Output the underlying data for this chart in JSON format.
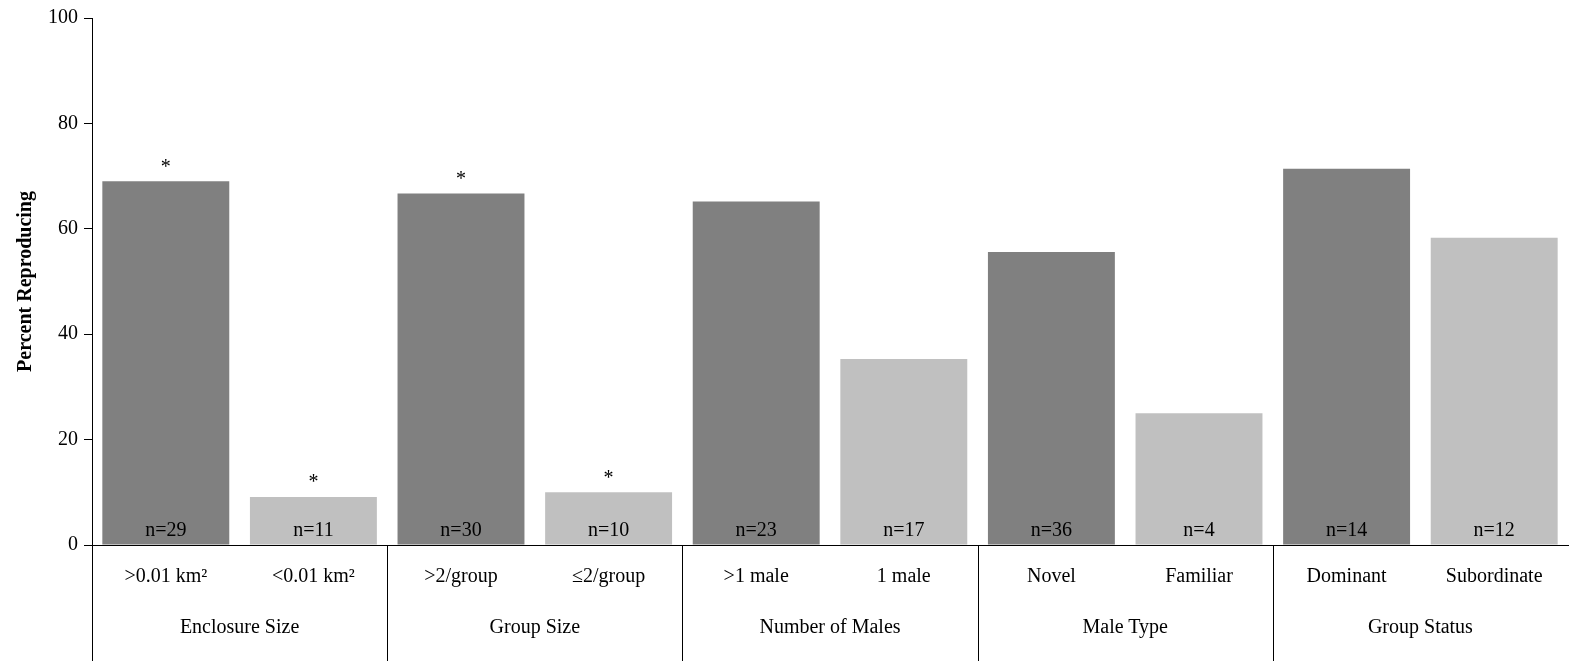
{
  "chart_data": {
    "type": "bar",
    "ylabel": "Percent Reproducing",
    "categories": [
      ">0.01 km²",
      "<0.01 km²",
      ">2/group",
      "≤2/group",
      ">1 male",
      "1 male",
      "Novel",
      "Familiar",
      "Dominant",
      "Subordinate"
    ],
    "values": [
      69.0,
      9.1,
      66.7,
      10.0,
      65.2,
      35.3,
      55.6,
      25.0,
      71.4,
      58.3
    ],
    "colors": [
      "#808080",
      "#c0c0c0",
      "#808080",
      "#c0c0c0",
      "#808080",
      "#c0c0c0",
      "#808080",
      "#c0c0c0",
      "#808080",
      "#c0c0c0"
    ],
    "ylim": [
      0,
      100
    ],
    "yticks": [
      0,
      20,
      40,
      60,
      80,
      100
    ],
    "grid": false,
    "legend": false,
    "annotations": [
      {
        "text": "*",
        "x": ">0.01 km²",
        "y": 69.0
      },
      {
        "text": "*",
        "x": "<0.01 km²",
        "y": 9.1
      },
      {
        "text": "*",
        "x": ">2/group",
        "y": 66.7
      },
      {
        "text": "*",
        "x": "≤2/group",
        "y": 10.0
      },
      {
        "text": "n=29",
        "x": ">0.01 km²",
        "y": 0
      },
      {
        "text": "n=11",
        "x": "<0.01 km²",
        "y": 0
      },
      {
        "text": "n=30",
        "x": ">2/group",
        "y": 0
      },
      {
        "text": "n=10",
        "x": "≤2/group",
        "y": 0
      },
      {
        "text": "n=23",
        "x": ">1 male",
        "y": 0
      },
      {
        "text": "n=17",
        "x": "1 male",
        "y": 0
      },
      {
        "text": "n=36",
        "x": "Novel",
        "y": 0
      },
      {
        "text": "n=4",
        "x": "Familiar",
        "y": 0
      },
      {
        "text": "n=14",
        "x": "Dominant",
        "y": 0
      },
      {
        "text": "n=12",
        "x": "Subordinate",
        "y": 0
      },
      "Enclosure Size",
      "Group Size",
      "Number of Males",
      "Male Type",
      "Group Status"
    ]
  }
}
